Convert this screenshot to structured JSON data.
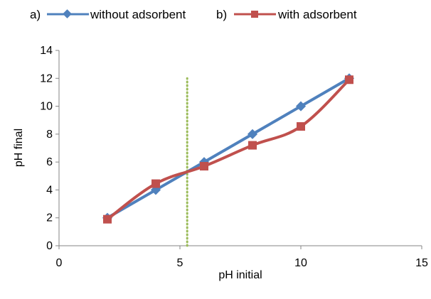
{
  "chart_data": {
    "type": "line",
    "xlabel": "pH initial",
    "ylabel": "pH final",
    "xlim": [
      0,
      15
    ],
    "ylim": [
      0,
      14
    ],
    "xticks": [
      0,
      5,
      10,
      15
    ],
    "yticks": [
      0,
      2,
      4,
      6,
      8,
      10,
      12,
      14
    ],
    "grid": false,
    "legend_position": "top",
    "series": [
      {
        "prefix": "a)",
        "name": "without adsorbent",
        "marker": "diamond",
        "color": "#4f81bd",
        "x": [
          2,
          4,
          6,
          8,
          10,
          12
        ],
        "y": [
          2.0,
          4.0,
          6.0,
          8.0,
          10.0,
          12.0
        ]
      },
      {
        "prefix": "b)",
        "name": "with adsorbent",
        "marker": "square",
        "color": "#c0504d",
        "x": [
          2,
          4,
          6,
          8,
          10,
          12
        ],
        "y": [
          1.9,
          4.45,
          5.7,
          7.2,
          8.55,
          11.9
        ]
      }
    ],
    "reference_line": {
      "orientation": "vertical",
      "x": 5.3,
      "y_range": [
        0,
        12
      ],
      "style": "dotted",
      "color": "#9bbb59"
    }
  }
}
